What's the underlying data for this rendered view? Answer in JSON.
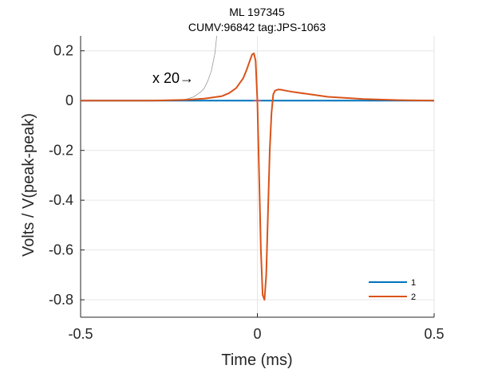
{
  "chart_data": {
    "type": "line",
    "title": [
      "ML 197345",
      "CUMV:96842  tag:JPS-1063"
    ],
    "xlabel": "Time (ms)",
    "ylabel": "Volts / V(peak-peak)",
    "xlim": [
      -0.5,
      0.5
    ],
    "ylim": [
      -0.87,
      0.26
    ],
    "xticks": [
      -0.5,
      0,
      0.5
    ],
    "xtick_labels": [
      "-0.5",
      "0",
      "0.5"
    ],
    "yticks": [
      0.2,
      0,
      -0.2,
      -0.4,
      -0.6,
      -0.8
    ],
    "ytick_labels": [
      "0.2",
      "0",
      "-0.2",
      "-0.4",
      "-0.6",
      "-0.8"
    ],
    "grid": true,
    "legend_position": "bottom-right",
    "annotation": "x 20→",
    "colors": {
      "series1": "#0072BD",
      "series2": "#D95319",
      "zoom": "#999999",
      "marker": "#ff4444"
    },
    "series": [
      {
        "name": "1",
        "x": [
          -0.5,
          0.5
        ],
        "y": [
          0,
          0
        ]
      },
      {
        "name": "2",
        "x": [
          -0.5,
          -0.4,
          -0.3,
          -0.2,
          -0.15,
          -0.1,
          -0.08,
          -0.06,
          -0.04,
          -0.03,
          -0.02,
          -0.015,
          -0.01,
          -0.005,
          0.0,
          0.005,
          0.01,
          0.015,
          0.02,
          0.025,
          0.03,
          0.035,
          0.04,
          0.045,
          0.05,
          0.06,
          0.07,
          0.08,
          0.1,
          0.15,
          0.2,
          0.3,
          0.4,
          0.5
        ],
        "y": [
          0,
          0,
          0,
          0.003,
          0.008,
          0.018,
          0.03,
          0.05,
          0.09,
          0.125,
          0.165,
          0.185,
          0.19,
          0.16,
          0.0,
          -0.3,
          -0.6,
          -0.78,
          -0.8,
          -0.7,
          -0.45,
          -0.2,
          -0.05,
          0.025,
          0.04,
          0.045,
          0.043,
          0.04,
          0.035,
          0.025,
          0.015,
          0.006,
          0.002,
          0.0
        ]
      }
    ],
    "zoom_trace": {
      "x": [
        -0.25,
        -0.22,
        -0.2,
        -0.18,
        -0.16,
        -0.15,
        -0.14,
        -0.13,
        -0.12,
        -0.115
      ],
      "y": [
        0,
        0.002,
        0.006,
        0.015,
        0.035,
        0.05,
        0.08,
        0.12,
        0.19,
        0.26
      ]
    },
    "marker_point": {
      "x": 0,
      "y": 0
    }
  }
}
